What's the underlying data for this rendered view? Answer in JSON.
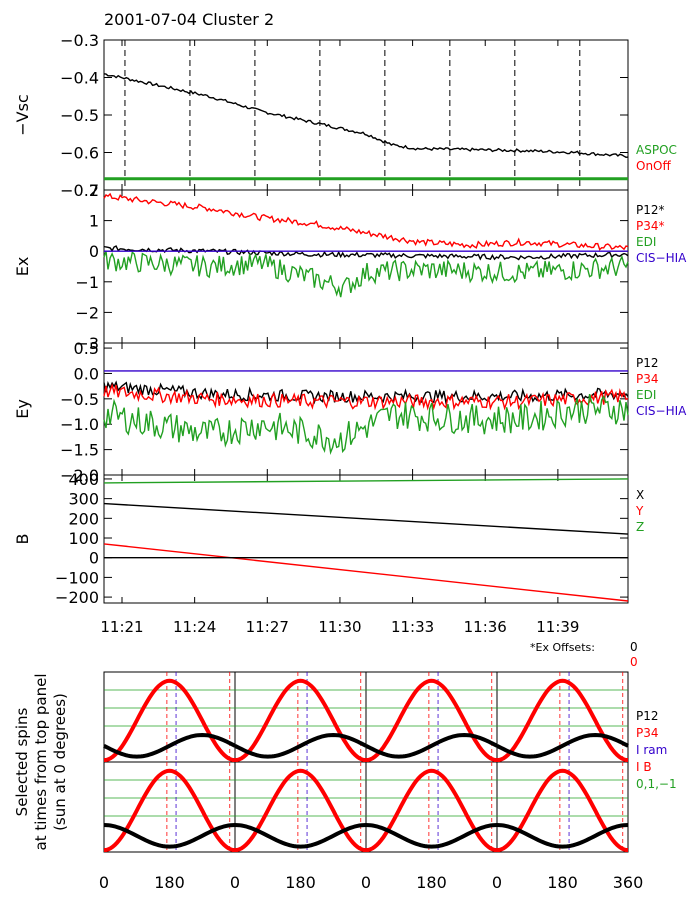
{
  "title": "2001-07-04 Cluster 2",
  "colors": {
    "black": "#000000",
    "red": "#ff0000",
    "green": "#22a022",
    "blue": "#3300cc",
    "axis": "#000000"
  },
  "time_ticks": [
    "11:21",
    "11:24",
    "11:27",
    "11:30",
    "11:33",
    "11:36",
    "11:39"
  ],
  "ex_offsets": {
    "label": "*Ex Offsets:",
    "p12": "0",
    "p34": "0"
  },
  "chart_data": [
    {
      "type": "line",
      "id": "vsc",
      "ylabel": "−Vsc",
      "ylim": [
        -0.7,
        -0.3
      ],
      "yticks": [
        "−0.3",
        "−0.4",
        "−0.5",
        "−0.6",
        "−0.7"
      ],
      "ytick_values": [
        -0.3,
        -0.4,
        -0.5,
        -0.6,
        -0.7
      ],
      "legend": [
        {
          "text": "ASPOC",
          "color": "green"
        },
        {
          "text": "OnOff",
          "color": "red"
        }
      ],
      "dashed_time_fractions": [
        0.04,
        0.164,
        0.288,
        0.412,
        0.536,
        0.66,
        0.784,
        0.908
      ],
      "series": [
        {
          "color": "black",
          "noise": 0.004,
          "points": [
            [
              0,
              -0.39
            ],
            [
              0.1,
              -0.42
            ],
            [
              0.2,
              -0.45
            ],
            [
              0.3,
              -0.49
            ],
            [
              0.4,
              -0.52
            ],
            [
              0.5,
              -0.55
            ],
            [
              0.55,
              -0.58
            ],
            [
              0.6,
              -0.59
            ],
            [
              0.8,
              -0.595
            ],
            [
              0.9,
              -0.6
            ],
            [
              1.0,
              -0.61
            ]
          ]
        },
        {
          "color": "green",
          "noise": 0,
          "points": [
            [
              0,
              -0.67
            ],
            [
              1.0,
              -0.67
            ]
          ]
        }
      ]
    },
    {
      "type": "line",
      "id": "ex",
      "ylabel": "Ex",
      "ylim": [
        -3,
        2
      ],
      "yticks": [
        "2",
        "1",
        "0",
        "−1",
        "−2",
        "−3"
      ],
      "ytick_values": [
        2,
        1,
        0,
        -1,
        -2,
        -3
      ],
      "legend": [
        {
          "text": "P12*",
          "color": "black"
        },
        {
          "text": "P34*",
          "color": "red"
        },
        {
          "text": "EDI",
          "color": "green"
        },
        {
          "text": "CIS−HIA",
          "color": "blue"
        }
      ],
      "series": [
        {
          "color": "red",
          "noise": 0.1,
          "points": [
            [
              0,
              1.8
            ],
            [
              0.1,
              1.6
            ],
            [
              0.2,
              1.4
            ],
            [
              0.3,
              1.1
            ],
            [
              0.4,
              0.9
            ],
            [
              0.5,
              0.6
            ],
            [
              0.6,
              0.3
            ],
            [
              0.7,
              0.2
            ],
            [
              0.8,
              0.3
            ],
            [
              0.9,
              0.2
            ],
            [
              1.0,
              0.1
            ]
          ]
        },
        {
          "color": "black",
          "noise": 0.08,
          "points": [
            [
              0,
              0.1
            ],
            [
              0.2,
              0.0
            ],
            [
              0.4,
              -0.1
            ],
            [
              0.6,
              -0.15
            ],
            [
              0.8,
              -0.2
            ],
            [
              1.0,
              -0.1
            ]
          ]
        },
        {
          "color": "green",
          "noise": 0.35,
          "points": [
            [
              0,
              -0.3
            ],
            [
              0.2,
              -0.5
            ],
            [
              0.3,
              -0.4
            ],
            [
              0.38,
              -0.8
            ],
            [
              0.46,
              -1.2
            ],
            [
              0.5,
              -0.7
            ],
            [
              0.6,
              -0.6
            ],
            [
              0.8,
              -0.7
            ],
            [
              1.0,
              -0.5
            ]
          ]
        },
        {
          "color": "blue",
          "noise": 0,
          "points": [
            [
              0,
              0.0
            ],
            [
              1.0,
              0.0
            ]
          ]
        }
      ]
    },
    {
      "type": "line",
      "id": "ey",
      "ylabel": "Ey",
      "ylim": [
        -2.0,
        0.6
      ],
      "yticks": [
        "0.5",
        "0.0",
        "−0.5",
        "−1.0",
        "−1.5",
        "−2.0"
      ],
      "ytick_values": [
        0.5,
        0.0,
        -0.5,
        -1.0,
        -1.5,
        -2.0
      ],
      "legend": [
        {
          "text": "P12",
          "color": "black"
        },
        {
          "text": "P34",
          "color": "red"
        },
        {
          "text": "EDI",
          "color": "green"
        },
        {
          "text": "CIS−HIA",
          "color": "blue"
        }
      ],
      "series": [
        {
          "color": "black",
          "noise": 0.12,
          "points": [
            [
              0,
              -0.25
            ],
            [
              0.2,
              -0.4
            ],
            [
              0.4,
              -0.45
            ],
            [
              0.6,
              -0.45
            ],
            [
              0.8,
              -0.45
            ],
            [
              1.0,
              -0.4
            ]
          ]
        },
        {
          "color": "red",
          "noise": 0.14,
          "points": [
            [
              0,
              -0.35
            ],
            [
              0.2,
              -0.5
            ],
            [
              0.4,
              -0.55
            ],
            [
              0.6,
              -0.55
            ],
            [
              0.8,
              -0.55
            ],
            [
              1.0,
              -0.45
            ]
          ]
        },
        {
          "color": "green",
          "noise": 0.3,
          "points": [
            [
              0,
              -0.8
            ],
            [
              0.1,
              -1.0
            ],
            [
              0.2,
              -1.2
            ],
            [
              0.3,
              -1.0
            ],
            [
              0.45,
              -1.3
            ],
            [
              0.55,
              -0.8
            ],
            [
              0.7,
              -0.9
            ],
            [
              0.8,
              -0.9
            ],
            [
              0.9,
              -0.7
            ],
            [
              1.0,
              -0.7
            ]
          ]
        },
        {
          "color": "blue",
          "noise": 0,
          "points": [
            [
              0,
              0.05
            ],
            [
              1.0,
              0.05
            ]
          ]
        }
      ]
    },
    {
      "type": "line",
      "id": "b",
      "ylabel": "B",
      "ylim": [
        -230,
        420
      ],
      "yticks": [
        "400",
        "300",
        "200",
        "100",
        "0",
        "−100",
        "−200"
      ],
      "ytick_values": [
        400,
        300,
        200,
        100,
        0,
        -100,
        -200
      ],
      "legend": [
        {
          "text": "X",
          "color": "black"
        },
        {
          "text": "Y",
          "color": "red"
        },
        {
          "text": "Z",
          "color": "green"
        }
      ],
      "series": [
        {
          "color": "green",
          "noise": 0,
          "points": [
            [
              0,
              380
            ],
            [
              0.5,
              395
            ],
            [
              1.0,
              400
            ]
          ]
        },
        {
          "color": "black",
          "noise": 0,
          "points": [
            [
              0,
              275
            ],
            [
              1.0,
              120
            ]
          ]
        },
        {
          "color": "red",
          "noise": 0,
          "points": [
            [
              0,
              70
            ],
            [
              1.0,
              -220
            ]
          ]
        },
        {
          "color": "black",
          "noise": 0,
          "points": [
            [
              0,
              0
            ],
            [
              1.0,
              0
            ]
          ]
        }
      ]
    }
  ],
  "spins": {
    "ylabel": [
      "Selected spins",
      "at times from top panel",
      "(sun at 0 degrees)"
    ],
    "xticks": [
      "0",
      "180",
      "0",
      "180",
      "0",
      "180",
      "0",
      "180",
      "360"
    ],
    "legend": [
      {
        "text": "P12",
        "color": "black"
      },
      {
        "text": "P34",
        "color": "red"
      },
      {
        "text": "I ram",
        "color": "blue"
      },
      {
        "text": "I B",
        "color": "red"
      },
      {
        "text": "0,1,−1",
        "color": "green"
      }
    ]
  }
}
